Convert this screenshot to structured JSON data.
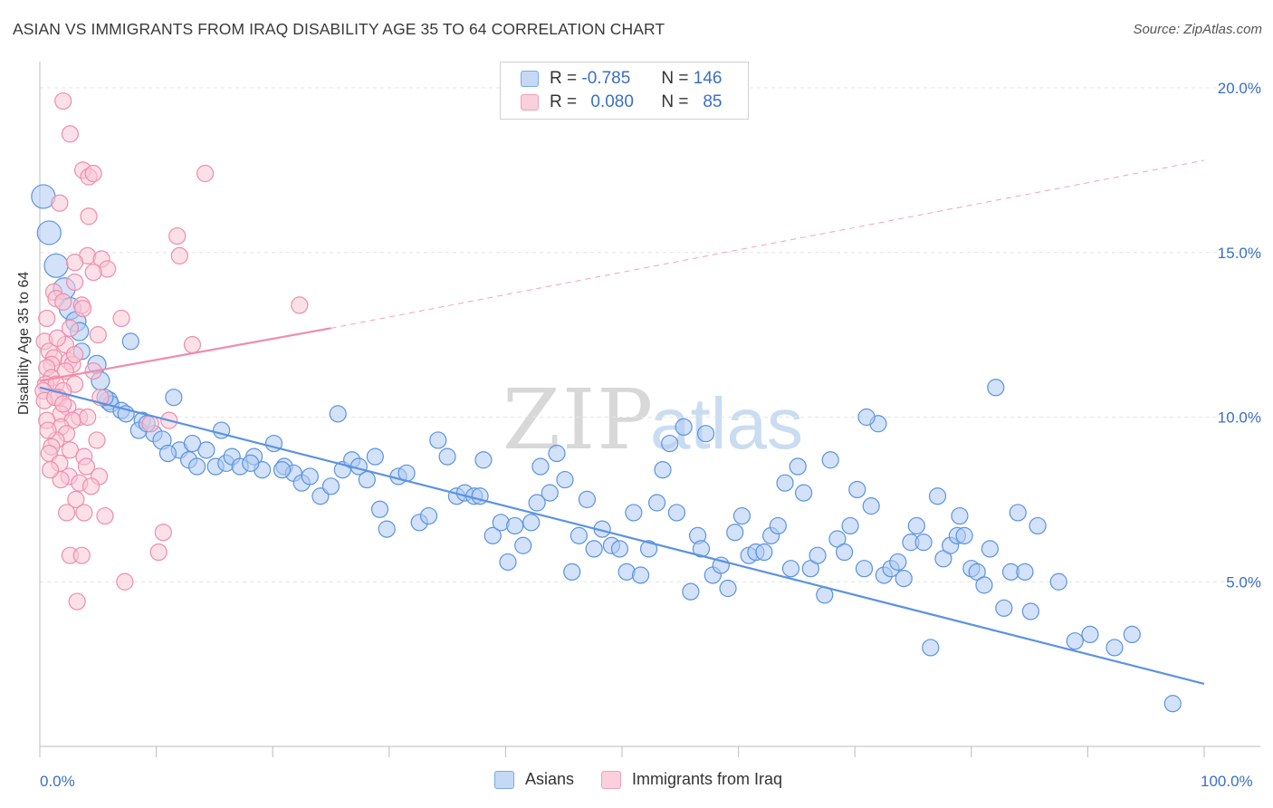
{
  "title": "ASIAN VS IMMIGRANTS FROM IRAQ DISABILITY AGE 35 TO 64 CORRELATION CHART",
  "source": "Source: ZipAtlas.com",
  "watermark": {
    "zip": "ZIP",
    "atlas": "atlas"
  },
  "legend": {
    "rows": [
      {
        "r_label": "R =",
        "r_value": "-0.785",
        "n_label": "N =",
        "n_value": "146",
        "color": "#7aa8e8",
        "fill": "#c5d9f5"
      },
      {
        "r_label": "R =",
        "r_value": "0.080",
        "n_label": "N =",
        "n_value": "85",
        "color": "#f0a0b8",
        "fill": "#fad0dd"
      }
    ]
  },
  "bottom_legend": [
    {
      "label": "Asians",
      "color": "#7aa8e8",
      "fill": "#c5d9f5"
    },
    {
      "label": "Immigrants from Iraq",
      "color": "#f0a0b8",
      "fill": "#fad0dd"
    }
  ],
  "chart_data": {
    "type": "scatter",
    "title": "ASIAN VS IMMIGRANTS FROM IRAQ DISABILITY AGE 35 TO 64 CORRELATION CHART",
    "xlabel": "",
    "ylabel": "Disability Age 35 to 64",
    "xlim": [
      0,
      100
    ],
    "ylim": [
      0,
      20
    ],
    "x_tick_labels": [
      "0.0%",
      "100.0%"
    ],
    "y_ticks": [
      5,
      10,
      15,
      20
    ],
    "y_tick_labels": [
      "5.0%",
      "10.0%",
      "15.0%",
      "20.0%"
    ],
    "grid": true,
    "legend_position": "top-center",
    "series": [
      {
        "name": "Asians",
        "color": "#5b93e0",
        "fill": "#aecbf2",
        "trend": {
          "x": [
            0,
            100
          ],
          "y": [
            10.9,
            1.9
          ],
          "dashed_from": null
        },
        "points": [
          [
            0.3,
            16.7,
            9
          ],
          [
            0.8,
            15.6,
            9
          ],
          [
            1.4,
            14.6,
            9
          ],
          [
            2.1,
            13.9,
            8
          ],
          [
            2.6,
            13.3,
            8
          ],
          [
            3.1,
            12.9,
            7
          ],
          [
            3.4,
            12.6,
            6
          ],
          [
            7.8,
            12.3,
            5
          ],
          [
            4.9,
            11.6,
            6
          ],
          [
            5.2,
            11.1,
            6
          ],
          [
            5.9,
            10.5,
            6
          ],
          [
            6.1,
            10.4,
            5
          ],
          [
            7.0,
            10.2,
            5
          ],
          [
            7.4,
            10.1,
            5
          ],
          [
            8.8,
            9.9,
            5
          ],
          [
            8.5,
            9.6,
            5
          ],
          [
            9.8,
            9.5,
            5
          ],
          [
            10.5,
            9.3,
            6
          ],
          [
            12.0,
            9.0,
            5
          ],
          [
            11.0,
            8.9,
            5
          ],
          [
            12.8,
            8.7,
            5
          ],
          [
            13.5,
            8.5,
            5
          ],
          [
            14.3,
            9.0,
            5
          ],
          [
            15.1,
            8.5,
            5
          ],
          [
            16.0,
            8.6,
            5
          ],
          [
            16.5,
            8.8,
            5
          ],
          [
            17.2,
            8.5,
            5
          ],
          [
            18.4,
            8.8,
            5
          ],
          [
            19.1,
            8.4,
            5
          ],
          [
            20.1,
            9.2,
            5
          ],
          [
            21.0,
            8.5,
            5
          ],
          [
            21.8,
            8.3,
            5
          ],
          [
            22.5,
            8.0,
            5
          ],
          [
            23.2,
            8.2,
            5
          ],
          [
            24.1,
            7.6,
            5
          ],
          [
            25.0,
            7.9,
            5
          ],
          [
            26.0,
            8.4,
            5
          ],
          [
            26.8,
            8.7,
            5
          ],
          [
            27.4,
            8.5,
            5
          ],
          [
            28.1,
            8.1,
            5
          ],
          [
            29.2,
            7.2,
            5
          ],
          [
            29.8,
            6.6,
            5
          ],
          [
            30.8,
            8.2,
            5
          ],
          [
            31.5,
            8.3,
            5
          ],
          [
            32.6,
            6.8,
            5
          ],
          [
            33.4,
            7.0,
            5
          ],
          [
            34.2,
            9.3,
            5
          ],
          [
            35.0,
            8.8,
            5
          ],
          [
            35.8,
            7.6,
            5
          ],
          [
            36.5,
            7.7,
            5
          ],
          [
            37.3,
            7.6,
            5
          ],
          [
            38.1,
            8.7,
            5
          ],
          [
            38.9,
            6.4,
            5
          ],
          [
            39.6,
            6.8,
            5
          ],
          [
            40.2,
            5.6,
            5
          ],
          [
            40.8,
            6.7,
            5
          ],
          [
            41.5,
            6.1,
            5
          ],
          [
            42.2,
            6.8,
            5
          ],
          [
            43.0,
            8.5,
            5
          ],
          [
            43.8,
            7.7,
            5
          ],
          [
            44.4,
            8.9,
            5
          ],
          [
            45.1,
            8.1,
            5
          ],
          [
            45.7,
            5.3,
            5
          ],
          [
            46.3,
            6.4,
            5
          ],
          [
            47.0,
            7.5,
            5
          ],
          [
            47.6,
            6.0,
            5
          ],
          [
            48.3,
            6.6,
            5
          ],
          [
            49.1,
            6.1,
            5
          ],
          [
            49.8,
            6.0,
            5
          ],
          [
            50.4,
            5.3,
            5
          ],
          [
            51.0,
            7.1,
            5
          ],
          [
            51.6,
            5.2,
            5
          ],
          [
            52.3,
            6.0,
            5
          ],
          [
            53.0,
            7.4,
            5
          ],
          [
            53.5,
            8.4,
            5
          ],
          [
            54.1,
            9.2,
            5
          ],
          [
            54.7,
            7.1,
            5
          ],
          [
            55.3,
            9.7,
            5
          ],
          [
            55.9,
            4.7,
            5
          ],
          [
            56.5,
            6.4,
            5
          ],
          [
            57.2,
            9.5,
            5
          ],
          [
            57.8,
            5.2,
            5
          ],
          [
            58.5,
            5.5,
            5
          ],
          [
            59.1,
            4.8,
            5
          ],
          [
            59.7,
            6.5,
            5
          ],
          [
            60.3,
            7.0,
            5
          ],
          [
            60.9,
            5.8,
            5
          ],
          [
            61.5,
            5.9,
            5
          ],
          [
            62.2,
            5.9,
            5
          ],
          [
            62.8,
            6.4,
            5
          ],
          [
            63.4,
            6.7,
            5
          ],
          [
            64.0,
            8.0,
            5
          ],
          [
            64.5,
            5.4,
            5
          ],
          [
            65.1,
            8.5,
            5
          ],
          [
            65.6,
            7.7,
            5
          ],
          [
            66.2,
            5.4,
            5
          ],
          [
            66.8,
            5.8,
            5
          ],
          [
            67.4,
            4.6,
            5
          ],
          [
            67.9,
            8.7,
            5
          ],
          [
            68.5,
            6.3,
            5
          ],
          [
            69.1,
            5.9,
            5
          ],
          [
            69.6,
            6.7,
            5
          ],
          [
            70.2,
            7.8,
            5
          ],
          [
            70.8,
            5.4,
            5
          ],
          [
            71.4,
            7.3,
            5
          ],
          [
            72.0,
            9.8,
            5
          ],
          [
            72.5,
            5.2,
            5
          ],
          [
            73.1,
            5.4,
            5
          ],
          [
            73.7,
            5.6,
            5
          ],
          [
            74.2,
            5.1,
            5
          ],
          [
            74.8,
            6.2,
            5
          ],
          [
            75.3,
            6.7,
            5
          ],
          [
            75.9,
            6.2,
            5
          ],
          [
            76.5,
            3.0,
            5
          ],
          [
            77.1,
            7.6,
            5
          ],
          [
            77.6,
            5.7,
            5
          ],
          [
            78.2,
            6.1,
            5
          ],
          [
            78.8,
            6.4,
            5
          ],
          [
            79.4,
            6.4,
            5
          ],
          [
            80.0,
            5.4,
            5
          ],
          [
            80.5,
            5.3,
            5
          ],
          [
            81.1,
            4.9,
            5
          ],
          [
            81.6,
            6.0,
            5
          ],
          [
            82.1,
            10.9,
            5
          ],
          [
            82.8,
            4.2,
            5
          ],
          [
            83.4,
            5.3,
            5
          ],
          [
            84.0,
            7.1,
            5
          ],
          [
            84.6,
            5.3,
            5
          ],
          [
            85.1,
            4.1,
            5
          ],
          [
            85.7,
            6.7,
            5
          ],
          [
            87.5,
            5.0,
            5
          ],
          [
            88.9,
            3.2,
            5
          ],
          [
            90.2,
            3.4,
            5
          ],
          [
            92.3,
            3.0,
            5
          ],
          [
            93.8,
            3.4,
            5
          ],
          [
            97.3,
            1.3,
            5
          ],
          [
            3.6,
            12.0,
            5
          ],
          [
            5.6,
            10.6,
            5
          ],
          [
            9.2,
            9.8,
            5
          ],
          [
            13.1,
            9.2,
            5
          ],
          [
            15.6,
            9.6,
            5
          ],
          [
            18.1,
            8.6,
            5
          ],
          [
            25.6,
            10.1,
            5
          ],
          [
            28.8,
            8.8,
            5
          ],
          [
            37.8,
            7.6,
            5
          ],
          [
            42.7,
            7.4,
            5
          ],
          [
            56.8,
            6.0,
            5
          ],
          [
            71.0,
            10.0,
            5
          ],
          [
            79.0,
            7.0,
            5
          ],
          [
            11.5,
            10.6,
            5
          ],
          [
            20.8,
            8.4,
            5
          ]
        ]
      },
      {
        "name": "Immigrants from Iraq",
        "color": "#f08cab",
        "fill": "#f8c6d6",
        "trend": {
          "x": [
            0,
            25,
            100
          ],
          "y": [
            11.1,
            12.7,
            17.8
          ],
          "dashed_from": 25
        },
        "points": [
          [
            2.0,
            19.6,
            5
          ],
          [
            2.6,
            18.6,
            5
          ],
          [
            3.7,
            17.5,
            5
          ],
          [
            4.2,
            17.3,
            5
          ],
          [
            4.6,
            17.4,
            5
          ],
          [
            14.2,
            17.4,
            5
          ],
          [
            1.7,
            16.5,
            5
          ],
          [
            4.2,
            16.1,
            5
          ],
          [
            11.8,
            15.5,
            5
          ],
          [
            12.0,
            14.9,
            5
          ],
          [
            4.1,
            14.9,
            5
          ],
          [
            5.3,
            14.8,
            5
          ],
          [
            3.0,
            14.7,
            5
          ],
          [
            5.8,
            14.5,
            5
          ],
          [
            4.6,
            14.4,
            5
          ],
          [
            3.0,
            14.1,
            5
          ],
          [
            1.2,
            13.8,
            5
          ],
          [
            1.4,
            13.6,
            5
          ],
          [
            2.0,
            13.5,
            5
          ],
          [
            3.6,
            13.4,
            5
          ],
          [
            3.7,
            13.3,
            5
          ],
          [
            22.3,
            13.4,
            5
          ],
          [
            0.6,
            13.0,
            5
          ],
          [
            7.0,
            13.0,
            5
          ],
          [
            2.6,
            12.7,
            5
          ],
          [
            5.0,
            12.5,
            5
          ],
          [
            0.4,
            12.3,
            5
          ],
          [
            2.2,
            12.2,
            5
          ],
          [
            13.1,
            12.2,
            5
          ],
          [
            0.8,
            12.0,
            5
          ],
          [
            1.2,
            11.8,
            5
          ],
          [
            2.5,
            11.7,
            5
          ],
          [
            1.0,
            11.6,
            5
          ],
          [
            2.8,
            11.6,
            5
          ],
          [
            0.6,
            11.5,
            5
          ],
          [
            2.2,
            11.4,
            5
          ],
          [
            4.6,
            11.4,
            5
          ],
          [
            1.0,
            11.2,
            5
          ],
          [
            0.5,
            11.0,
            5
          ],
          [
            1.4,
            11.0,
            5
          ],
          [
            3.0,
            11.0,
            5
          ],
          [
            0.3,
            10.8,
            5
          ],
          [
            2.0,
            10.8,
            5
          ],
          [
            1.6,
            10.6,
            5
          ],
          [
            5.2,
            10.6,
            5
          ],
          [
            0.4,
            10.5,
            5
          ],
          [
            2.4,
            10.3,
            5
          ],
          [
            1.8,
            10.1,
            5
          ],
          [
            3.4,
            10.0,
            5
          ],
          [
            4.1,
            10.0,
            5
          ],
          [
            11.1,
            9.9,
            5
          ],
          [
            2.8,
            9.9,
            5
          ],
          [
            0.6,
            9.9,
            5
          ],
          [
            1.8,
            9.7,
            5
          ],
          [
            9.5,
            9.8,
            5
          ],
          [
            2.3,
            9.5,
            5
          ],
          [
            1.4,
            9.3,
            5
          ],
          [
            1.0,
            9.1,
            5
          ],
          [
            2.6,
            9.0,
            5
          ],
          [
            0.8,
            8.9,
            5
          ],
          [
            3.8,
            8.8,
            5
          ],
          [
            1.7,
            8.6,
            5
          ],
          [
            4.0,
            8.5,
            5
          ],
          [
            2.5,
            8.2,
            5
          ],
          [
            5.1,
            8.2,
            5
          ],
          [
            1.8,
            8.1,
            5
          ],
          [
            3.4,
            8.0,
            5
          ],
          [
            4.4,
            7.9,
            5
          ],
          [
            3.1,
            7.5,
            5
          ],
          [
            2.3,
            7.1,
            5
          ],
          [
            3.8,
            7.1,
            5
          ],
          [
            5.6,
            7.0,
            5
          ],
          [
            10.6,
            6.5,
            5
          ],
          [
            2.6,
            5.8,
            5
          ],
          [
            3.6,
            5.8,
            5
          ],
          [
            10.2,
            5.9,
            5
          ],
          [
            7.3,
            5.0,
            5
          ],
          [
            3.2,
            4.4,
            5
          ],
          [
            1.3,
            10.6,
            5
          ],
          [
            2.0,
            10.4,
            5
          ],
          [
            0.7,
            9.6,
            5
          ],
          [
            3.0,
            11.9,
            5
          ],
          [
            1.5,
            12.4,
            5
          ],
          [
            4.9,
            9.3,
            5
          ],
          [
            0.9,
            8.4,
            5
          ]
        ]
      }
    ]
  }
}
